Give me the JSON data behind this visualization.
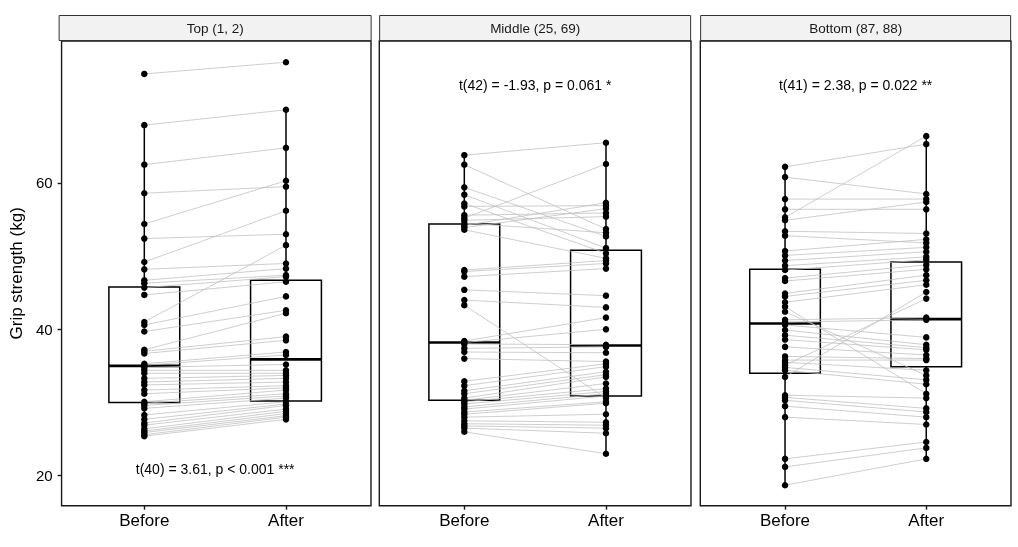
{
  "chart_data": [
    {
      "type": "box",
      "title": "Top (1, 2)",
      "ylabel": "Grip strength (kg)",
      "categories": [
        "Before",
        "After"
      ],
      "ylim": [
        15.9,
        79.4
      ],
      "yticks": [
        20,
        40,
        60
      ],
      "grid": false,
      "annotations": [
        "t(40) = 3.61, p < 0.001 ***"
      ],
      "series": [
        {
          "color": "#000000",
          "boxes": [
            {
              "low": 25.4,
              "q1": 30.0,
              "median": 35.0,
              "q3": 45.8,
              "high": 67.9
            },
            {
              "low": 27.7,
              "q1": 30.2,
              "median": 35.9,
              "q3": 46.7,
              "high": 70.0
            }
          ]
        },
        {
          "type": "line",
          "color": "#bebebe",
          "values": [
            74.9,
            76.5
          ]
        },
        {
          "type": "line",
          "color": "#bebebe",
          "values": [
            67.9,
            70.0
          ]
        },
        {
          "type": "line",
          "color": "#bebebe",
          "values": [
            62.5,
            64.8
          ]
        },
        {
          "type": "line",
          "color": "#bebebe",
          "values": [
            58.6,
            59.5
          ]
        },
        {
          "type": "line",
          "color": "#bebebe",
          "values": [
            54.4,
            60.3
          ]
        },
        {
          "type": "line",
          "color": "#bebebe",
          "values": [
            52.4,
            53.0
          ]
        },
        {
          "type": "line",
          "color": "#bebebe",
          "values": [
            49.2,
            56.2
          ]
        },
        {
          "type": "line",
          "color": "#bebebe",
          "values": [
            48.2,
            49.0
          ]
        },
        {
          "type": "line",
          "color": "#bebebe",
          "values": [
            46.7,
            48.3
          ]
        },
        {
          "type": "line",
          "color": "#bebebe",
          "values": [
            46.3,
            47.4
          ]
        },
        {
          "type": "line",
          "color": "#bebebe",
          "values": [
            45.7,
            47.2
          ]
        },
        {
          "type": "line",
          "color": "#bebebe",
          "values": [
            44.7,
            46.5
          ]
        },
        {
          "type": "line",
          "color": "#bebebe",
          "values": [
            41.0,
            51.5
          ]
        },
        {
          "type": "line",
          "color": "#bebebe",
          "values": [
            40.6,
            44.5
          ]
        },
        {
          "type": "line",
          "color": "#bebebe",
          "values": [
            39.7,
            42.6
          ]
        },
        {
          "type": "line",
          "color": "#bebebe",
          "values": [
            37.2,
            42.2
          ]
        },
        {
          "type": "line",
          "color": "#bebebe",
          "values": [
            37.0,
            39.0
          ]
        },
        {
          "type": "line",
          "color": "#bebebe",
          "values": [
            36.7,
            38.5
          ]
        },
        {
          "type": "line",
          "color": "#bebebe",
          "values": [
            35.3,
            36.9
          ]
        },
        {
          "type": "line",
          "color": "#bebebe",
          "values": [
            35.1,
            36.5
          ]
        },
        {
          "type": "line",
          "color": "#bebebe",
          "values": [
            34.8,
            35.2
          ]
        },
        {
          "type": "line",
          "color": "#bebebe",
          "values": [
            34.4,
            34.4
          ]
        },
        {
          "type": "line",
          "color": "#bebebe",
          "values": [
            34.0,
            34.0
          ]
        },
        {
          "type": "line",
          "color": "#bebebe",
          "values": [
            33.3,
            33.7
          ]
        },
        {
          "type": "line",
          "color": "#bebebe",
          "values": [
            32.8,
            33.3
          ]
        },
        {
          "type": "line",
          "color": "#bebebe",
          "values": [
            32.4,
            32.8
          ]
        },
        {
          "type": "line",
          "color": "#bebebe",
          "values": [
            31.7,
            32.3
          ]
        },
        {
          "type": "line",
          "color": "#bebebe",
          "values": [
            31.2,
            32.0
          ]
        },
        {
          "type": "line",
          "color": "#bebebe",
          "values": [
            30.1,
            31.7
          ]
        },
        {
          "type": "line",
          "color": "#bebebe",
          "values": [
            29.9,
            31.2
          ]
        },
        {
          "type": "line",
          "color": "#bebebe",
          "values": [
            29.6,
            30.9
          ]
        },
        {
          "type": "line",
          "color": "#bebebe",
          "values": [
            29.2,
            30.6
          ]
        },
        {
          "type": "line",
          "color": "#bebebe",
          "values": [
            28.3,
            30.1
          ]
        },
        {
          "type": "line",
          "color": "#bebebe",
          "values": [
            27.7,
            29.8
          ]
        },
        {
          "type": "line",
          "color": "#bebebe",
          "values": [
            27.2,
            29.6
          ]
        },
        {
          "type": "line",
          "color": "#bebebe",
          "values": [
            26.9,
            29.1
          ]
        },
        {
          "type": "line",
          "color": "#bebebe",
          "values": [
            26.4,
            28.8
          ]
        },
        {
          "type": "line",
          "color": "#bebebe",
          "values": [
            26.1,
            28.5
          ]
        },
        {
          "type": "line",
          "color": "#bebebe",
          "values": [
            25.9,
            28.2
          ]
        },
        {
          "type": "line",
          "color": "#bebebe",
          "values": [
            25.6,
            28.0
          ]
        },
        {
          "type": "line",
          "color": "#bebebe",
          "values": [
            25.4,
            27.7
          ]
        },
        {
          "type": "scatter",
          "color": "#000000",
          "x": [
            "Before",
            "Before",
            "Before",
            "Before",
            "Before",
            "Before",
            "Before",
            "Before",
            "Before",
            "Before",
            "Before",
            "Before",
            "Before",
            "Before",
            "Before",
            "Before",
            "Before",
            "Before",
            "Before",
            "Before",
            "Before",
            "Before",
            "Before",
            "Before",
            "Before",
            "Before",
            "Before",
            "Before",
            "Before",
            "Before",
            "Before",
            "Before",
            "Before",
            "Before",
            "Before",
            "Before",
            "Before",
            "Before",
            "Before",
            "Before",
            "Before",
            "After",
            "After",
            "After",
            "After",
            "After",
            "After",
            "After",
            "After",
            "After",
            "After",
            "After",
            "After",
            "After",
            "After",
            "After",
            "After",
            "After",
            "After",
            "After",
            "After",
            "After",
            "After",
            "After",
            "After",
            "After",
            "After",
            "After",
            "After",
            "After",
            "After",
            "After",
            "After",
            "After",
            "After",
            "After",
            "After",
            "After",
            "After",
            "After",
            "After",
            "After"
          ],
          "values": [
            74.9,
            67.9,
            62.5,
            58.6,
            54.4,
            52.4,
            49.2,
            48.2,
            46.7,
            46.3,
            45.7,
            44.7,
            41.0,
            40.6,
            39.7,
            37.2,
            37.0,
            36.7,
            35.3,
            35.1,
            34.8,
            34.4,
            34.0,
            33.3,
            32.8,
            32.4,
            31.7,
            31.2,
            30.1,
            29.9,
            29.6,
            29.2,
            28.3,
            27.7,
            27.2,
            26.9,
            26.4,
            26.1,
            25.9,
            25.6,
            25.4,
            76.5,
            70.0,
            64.8,
            59.5,
            60.3,
            53.0,
            56.2,
            49.0,
            48.3,
            47.4,
            47.2,
            46.5,
            51.5,
            44.5,
            42.6,
            42.2,
            39.0,
            38.5,
            36.9,
            36.5,
            35.2,
            34.4,
            34.0,
            33.7,
            33.3,
            32.8,
            32.3,
            32.0,
            31.7,
            31.2,
            30.9,
            30.6,
            30.1,
            29.8,
            29.6,
            29.1,
            28.8,
            28.5,
            28.2,
            28.0,
            27.7
          ]
        }
      ]
    },
    {
      "type": "box",
      "title": "Middle (25, 69)",
      "categories": [
        "Before",
        "After"
      ],
      "ylim": [
        15.9,
        79.4
      ],
      "tick_labels": "x",
      "grid": false,
      "annotations": [
        "t(42) = -1.93, p = 0.061 *"
      ],
      "series": [
        {
          "color": "#000000",
          "boxes": [
            {
              "low": 26.0,
              "q1": 30.3,
              "median": 38.2,
              "q3": 54.4,
              "high": 63.8
            },
            {
              "low": 23.0,
              "q1": 30.9,
              "median": 37.8,
              "q3": 50.8,
              "high": 65.5
            }
          ]
        },
        {
          "type": "line",
          "color": "#bebebe",
          "values": [
            63.8,
            65.5
          ]
        },
        {
          "type": "line",
          "color": "#bebebe",
          "values": [
            62.5,
            53.7
          ]
        },
        {
          "type": "line",
          "color": "#bebebe",
          "values": [
            59.4,
            52.7
          ]
        },
        {
          "type": "line",
          "color": "#bebebe",
          "values": [
            58.4,
            51.1
          ]
        },
        {
          "type": "line",
          "color": "#bebebe",
          "values": [
            57.2,
            50.4
          ]
        },
        {
          "type": "line",
          "color": "#bebebe",
          "values": [
            56.8,
            56.9
          ]
        },
        {
          "type": "line",
          "color": "#bebebe",
          "values": [
            55.6,
            55.9
          ]
        },
        {
          "type": "line",
          "color": "#bebebe",
          "values": [
            55.2,
            62.6
          ]
        },
        {
          "type": "line",
          "color": "#bebebe",
          "values": [
            54.9,
            55.4
          ]
        },
        {
          "type": "line",
          "color": "#bebebe",
          "values": [
            54.5,
            53.2
          ]
        },
        {
          "type": "line",
          "color": "#bebebe",
          "values": [
            54.2,
            57.3
          ]
        },
        {
          "type": "line",
          "color": "#bebebe",
          "values": [
            53.9,
            56.5
          ]
        },
        {
          "type": "line",
          "color": "#bebebe",
          "values": [
            53.6,
            49.7
          ]
        },
        {
          "type": "line",
          "color": "#bebebe",
          "values": [
            48.1,
            49.4
          ]
        },
        {
          "type": "line",
          "color": "#bebebe",
          "values": [
            47.9,
            49.0
          ]
        },
        {
          "type": "line",
          "color": "#bebebe",
          "values": [
            47.2,
            48.3
          ]
        },
        {
          "type": "line",
          "color": "#bebebe",
          "values": [
            45.4,
            44.6
          ]
        },
        {
          "type": "line",
          "color": "#bebebe",
          "values": [
            44.0,
            43.0
          ]
        },
        {
          "type": "line",
          "color": "#bebebe",
          "values": [
            43.3,
            30.6
          ]
        },
        {
          "type": "line",
          "color": "#bebebe",
          "values": [
            38.4,
            41.6
          ]
        },
        {
          "type": "line",
          "color": "#bebebe",
          "values": [
            38.2,
            40.0
          ]
        },
        {
          "type": "line",
          "color": "#bebebe",
          "values": [
            38.0,
            37.9
          ]
        },
        {
          "type": "line",
          "color": "#bebebe",
          "values": [
            37.4,
            37.6
          ]
        },
        {
          "type": "line",
          "color": "#bebebe",
          "values": [
            36.9,
            36.8
          ]
        },
        {
          "type": "line",
          "color": "#bebebe",
          "values": [
            36.0,
            35.6
          ]
        },
        {
          "type": "line",
          "color": "#bebebe",
          "values": [
            32.9,
            35.3
          ]
        },
        {
          "type": "line",
          "color": "#bebebe",
          "values": [
            32.3,
            34.9
          ]
        },
        {
          "type": "line",
          "color": "#bebebe",
          "values": [
            31.6,
            34.2
          ]
        },
        {
          "type": "line",
          "color": "#bebebe",
          "values": [
            31.2,
            33.8
          ]
        },
        {
          "type": "line",
          "color": "#bebebe",
          "values": [
            30.6,
            33.5
          ]
        },
        {
          "type": "line",
          "color": "#bebebe",
          "values": [
            30.3,
            32.6
          ]
        },
        {
          "type": "line",
          "color": "#bebebe",
          "values": [
            30.1,
            31.9
          ]
        },
        {
          "type": "line",
          "color": "#bebebe",
          "values": [
            29.8,
            31.5
          ]
        },
        {
          "type": "line",
          "color": "#bebebe",
          "values": [
            29.4,
            31.2
          ]
        },
        {
          "type": "line",
          "color": "#bebebe",
          "values": [
            29.1,
            30.9
          ]
        },
        {
          "type": "line",
          "color": "#bebebe",
          "values": [
            28.7,
            30.1
          ]
        },
        {
          "type": "line",
          "color": "#bebebe",
          "values": [
            28.4,
            29.9
          ]
        },
        {
          "type": "line",
          "color": "#bebebe",
          "values": [
            28.0,
            28.4
          ]
        },
        {
          "type": "line",
          "color": "#bebebe",
          "values": [
            27.5,
            27.3
          ]
        },
        {
          "type": "line",
          "color": "#bebebe",
          "values": [
            27.1,
            26.9
          ]
        },
        {
          "type": "line",
          "color": "#bebebe",
          "values": [
            26.8,
            26.5
          ]
        },
        {
          "type": "line",
          "color": "#bebebe",
          "values": [
            26.5,
            25.8
          ]
        },
        {
          "type": "line",
          "color": "#bebebe",
          "values": [
            26.0,
            23.0
          ]
        },
        {
          "type": "scatter",
          "color": "#000000",
          "x": [
            "Before",
            "Before",
            "Before",
            "Before",
            "Before",
            "Before",
            "Before",
            "Before",
            "Before",
            "Before",
            "Before",
            "Before",
            "Before",
            "Before",
            "Before",
            "Before",
            "Before",
            "Before",
            "Before",
            "Before",
            "Before",
            "Before",
            "Before",
            "Before",
            "Before",
            "Before",
            "Before",
            "Before",
            "Before",
            "Before",
            "Before",
            "Before",
            "Before",
            "Before",
            "Before",
            "Before",
            "Before",
            "Before",
            "Before",
            "Before",
            "Before",
            "Before",
            "Before",
            "After",
            "After",
            "After",
            "After",
            "After",
            "After",
            "After",
            "After",
            "After",
            "After",
            "After",
            "After",
            "After",
            "After",
            "After",
            "After",
            "After",
            "After",
            "After",
            "After",
            "After",
            "After",
            "After",
            "After",
            "After",
            "After",
            "After",
            "After",
            "After",
            "After",
            "After",
            "After",
            "After",
            "After",
            "After",
            "After",
            "After",
            "After",
            "After",
            "After",
            "After",
            "After",
            "After"
          ],
          "values": [
            63.8,
            62.5,
            59.4,
            58.4,
            57.2,
            56.8,
            55.6,
            55.2,
            54.9,
            54.5,
            54.2,
            53.9,
            53.6,
            48.1,
            47.9,
            47.2,
            45.4,
            44.0,
            43.3,
            38.4,
            38.2,
            38.0,
            37.4,
            36.9,
            36.0,
            32.9,
            32.3,
            31.6,
            31.2,
            30.6,
            30.3,
            30.1,
            29.8,
            29.4,
            29.1,
            28.7,
            28.4,
            28.0,
            27.5,
            27.1,
            26.8,
            26.5,
            26.0,
            65.5,
            53.7,
            52.7,
            51.1,
            50.4,
            56.9,
            55.9,
            62.6,
            55.4,
            53.2,
            57.3,
            56.5,
            49.7,
            49.4,
            49.0,
            48.3,
            44.6,
            43.0,
            30.6,
            41.6,
            40.0,
            37.9,
            37.6,
            36.8,
            35.6,
            35.3,
            34.9,
            34.2,
            33.8,
            33.5,
            32.6,
            31.9,
            31.5,
            31.2,
            30.9,
            30.1,
            29.9,
            28.4,
            27.3,
            26.9,
            26.5,
            25.8,
            23.0
          ]
        }
      ]
    },
    {
      "type": "box",
      "title": "Bottom (87, 88)",
      "categories": [
        "Before",
        "After"
      ],
      "ylim": [
        15.9,
        79.4
      ],
      "tick_labels": "x",
      "grid": false,
      "annotations": [
        "t(41) = 2.38, p = 0.022 **"
      ],
      "series": [
        {
          "color": "#000000",
          "boxes": [
            {
              "low": 18.7,
              "q1": 34.0,
              "median": 40.8,
              "q3": 48.2,
              "high": 62.2
            },
            {
              "low": 22.3,
              "q1": 34.9,
              "median": 41.4,
              "q3": 49.2,
              "high": 66.4
            }
          ]
        },
        {
          "type": "line",
          "color": "#bebebe",
          "values": [
            62.2,
            65.3
          ]
        },
        {
          "type": "line",
          "color": "#bebebe",
          "values": [
            60.8,
            58.5
          ]
        },
        {
          "type": "line",
          "color": "#bebebe",
          "values": [
            57.8,
            57.8
          ]
        },
        {
          "type": "line",
          "color": "#bebebe",
          "values": [
            56.4,
            56.4
          ]
        },
        {
          "type": "line",
          "color": "#bebebe",
          "values": [
            55.3,
            66.4
          ]
        },
        {
          "type": "line",
          "color": "#bebebe",
          "values": [
            54.9,
            57.4
          ]
        },
        {
          "type": "line",
          "color": "#bebebe",
          "values": [
            53.4,
            53.1
          ]
        },
        {
          "type": "line",
          "color": "#bebebe",
          "values": [
            52.8,
            51.8
          ]
        },
        {
          "type": "line",
          "color": "#bebebe",
          "values": [
            50.7,
            52.3
          ]
        },
        {
          "type": "line",
          "color": "#bebebe",
          "values": [
            50.1,
            51.2
          ]
        },
        {
          "type": "line",
          "color": "#bebebe",
          "values": [
            49.4,
            50.6
          ]
        },
        {
          "type": "line",
          "color": "#bebebe",
          "values": [
            48.7,
            49.9
          ]
        },
        {
          "type": "line",
          "color": "#bebebe",
          "values": [
            48.1,
            49.5
          ]
        },
        {
          "type": "line",
          "color": "#bebebe",
          "values": [
            47.0,
            48.8
          ]
        },
        {
          "type": "line",
          "color": "#bebebe",
          "values": [
            46.6,
            48.2
          ]
        },
        {
          "type": "line",
          "color": "#bebebe",
          "values": [
            44.9,
            47.4
          ]
        },
        {
          "type": "line",
          "color": "#bebebe",
          "values": [
            44.5,
            46.7
          ]
        },
        {
          "type": "line",
          "color": "#bebebe",
          "values": [
            43.7,
            46.1
          ]
        },
        {
          "type": "line",
          "color": "#bebebe",
          "values": [
            43.1,
            31.2
          ]
        },
        {
          "type": "line",
          "color": "#bebebe",
          "values": [
            42.4,
            33.7
          ]
        },
        {
          "type": "line",
          "color": "#bebebe",
          "values": [
            41.3,
            41.6
          ]
        },
        {
          "type": "line",
          "color": "#bebebe",
          "values": [
            41.0,
            41.3
          ]
        },
        {
          "type": "line",
          "color": "#bebebe",
          "values": [
            40.6,
            38.9
          ]
        },
        {
          "type": "line",
          "color": "#bebebe",
          "values": [
            39.9,
            37.9
          ]
        },
        {
          "type": "line",
          "color": "#bebebe",
          "values": [
            39.2,
            37.5
          ]
        },
        {
          "type": "line",
          "color": "#bebebe",
          "values": [
            38.6,
            37.2
          ]
        },
        {
          "type": "line",
          "color": "#bebebe",
          "values": [
            37.6,
            36.5
          ]
        },
        {
          "type": "line",
          "color": "#bebebe",
          "values": [
            36.3,
            36.0
          ]
        },
        {
          "type": "line",
          "color": "#bebebe",
          "values": [
            35.8,
            35.8
          ]
        },
        {
          "type": "line",
          "color": "#bebebe",
          "values": [
            35.5,
            34.4
          ]
        },
        {
          "type": "line",
          "color": "#bebebe",
          "values": [
            35.1,
            44.2
          ]
        },
        {
          "type": "line",
          "color": "#bebebe",
          "values": [
            34.8,
            33.1
          ]
        },
        {
          "type": "line",
          "color": "#bebebe",
          "values": [
            34.4,
            32.5
          ]
        },
        {
          "type": "line",
          "color": "#bebebe",
          "values": [
            33.5,
            45.1
          ]
        },
        {
          "type": "line",
          "color": "#bebebe",
          "values": [
            31.0,
            30.6
          ]
        },
        {
          "type": "line",
          "color": "#bebebe",
          "values": [
            30.7,
            29.2
          ]
        },
        {
          "type": "line",
          "color": "#bebebe",
          "values": [
            30.3,
            28.7
          ]
        },
        {
          "type": "line",
          "color": "#bebebe",
          "values": [
            29.5,
            28.0
          ]
        },
        {
          "type": "line",
          "color": "#bebebe",
          "values": [
            28.0,
            27.0
          ]
        },
        {
          "type": "line",
          "color": "#bebebe",
          "values": [
            22.3,
            24.6
          ]
        },
        {
          "type": "line",
          "color": "#bebebe",
          "values": [
            21.2,
            23.8
          ]
        },
        {
          "type": "line",
          "color": "#bebebe",
          "values": [
            18.7,
            22.3
          ]
        },
        {
          "type": "scatter",
          "color": "#000000",
          "x": [
            "Before",
            "Before",
            "Before",
            "Before",
            "Before",
            "Before",
            "Before",
            "Before",
            "Before",
            "Before",
            "Before",
            "Before",
            "Before",
            "Before",
            "Before",
            "Before",
            "Before",
            "Before",
            "Before",
            "Before",
            "Before",
            "Before",
            "Before",
            "Before",
            "Before",
            "Before",
            "Before",
            "Before",
            "Before",
            "Before",
            "Before",
            "Before",
            "Before",
            "Before",
            "Before",
            "Before",
            "Before",
            "Before",
            "Before",
            "Before",
            "Before",
            "Before",
            "After",
            "After",
            "After",
            "After",
            "After",
            "After",
            "After",
            "After",
            "After",
            "After",
            "After",
            "After",
            "After",
            "After",
            "After",
            "After",
            "After",
            "After",
            "After",
            "After",
            "After",
            "After",
            "After",
            "After",
            "After",
            "After",
            "After",
            "After",
            "After",
            "After",
            "After",
            "After",
            "After",
            "After",
            "After",
            "After",
            "After",
            "After",
            "After",
            "After",
            "After",
            "After"
          ],
          "values": [
            62.2,
            60.8,
            57.8,
            56.4,
            55.3,
            54.9,
            53.4,
            52.8,
            50.7,
            50.1,
            49.4,
            48.7,
            48.1,
            47.0,
            46.6,
            44.9,
            44.5,
            43.7,
            43.1,
            42.4,
            41.3,
            41.0,
            40.6,
            39.9,
            39.2,
            38.6,
            37.6,
            36.3,
            35.8,
            35.5,
            35.1,
            34.8,
            34.4,
            33.5,
            31.0,
            30.7,
            30.3,
            29.5,
            28.0,
            22.3,
            21.2,
            18.7,
            65.3,
            58.5,
            57.8,
            56.4,
            66.4,
            57.4,
            53.1,
            51.8,
            52.3,
            51.2,
            50.6,
            49.9,
            49.5,
            48.8,
            48.2,
            47.4,
            46.7,
            46.1,
            31.2,
            33.7,
            41.6,
            41.3,
            38.9,
            37.9,
            37.5,
            37.2,
            36.5,
            36.0,
            35.8,
            34.4,
            44.2,
            33.1,
            32.5,
            45.1,
            30.6,
            29.2,
            28.7,
            28.0,
            27.0,
            24.6,
            23.8,
            22.3
          ]
        }
      ]
    }
  ]
}
